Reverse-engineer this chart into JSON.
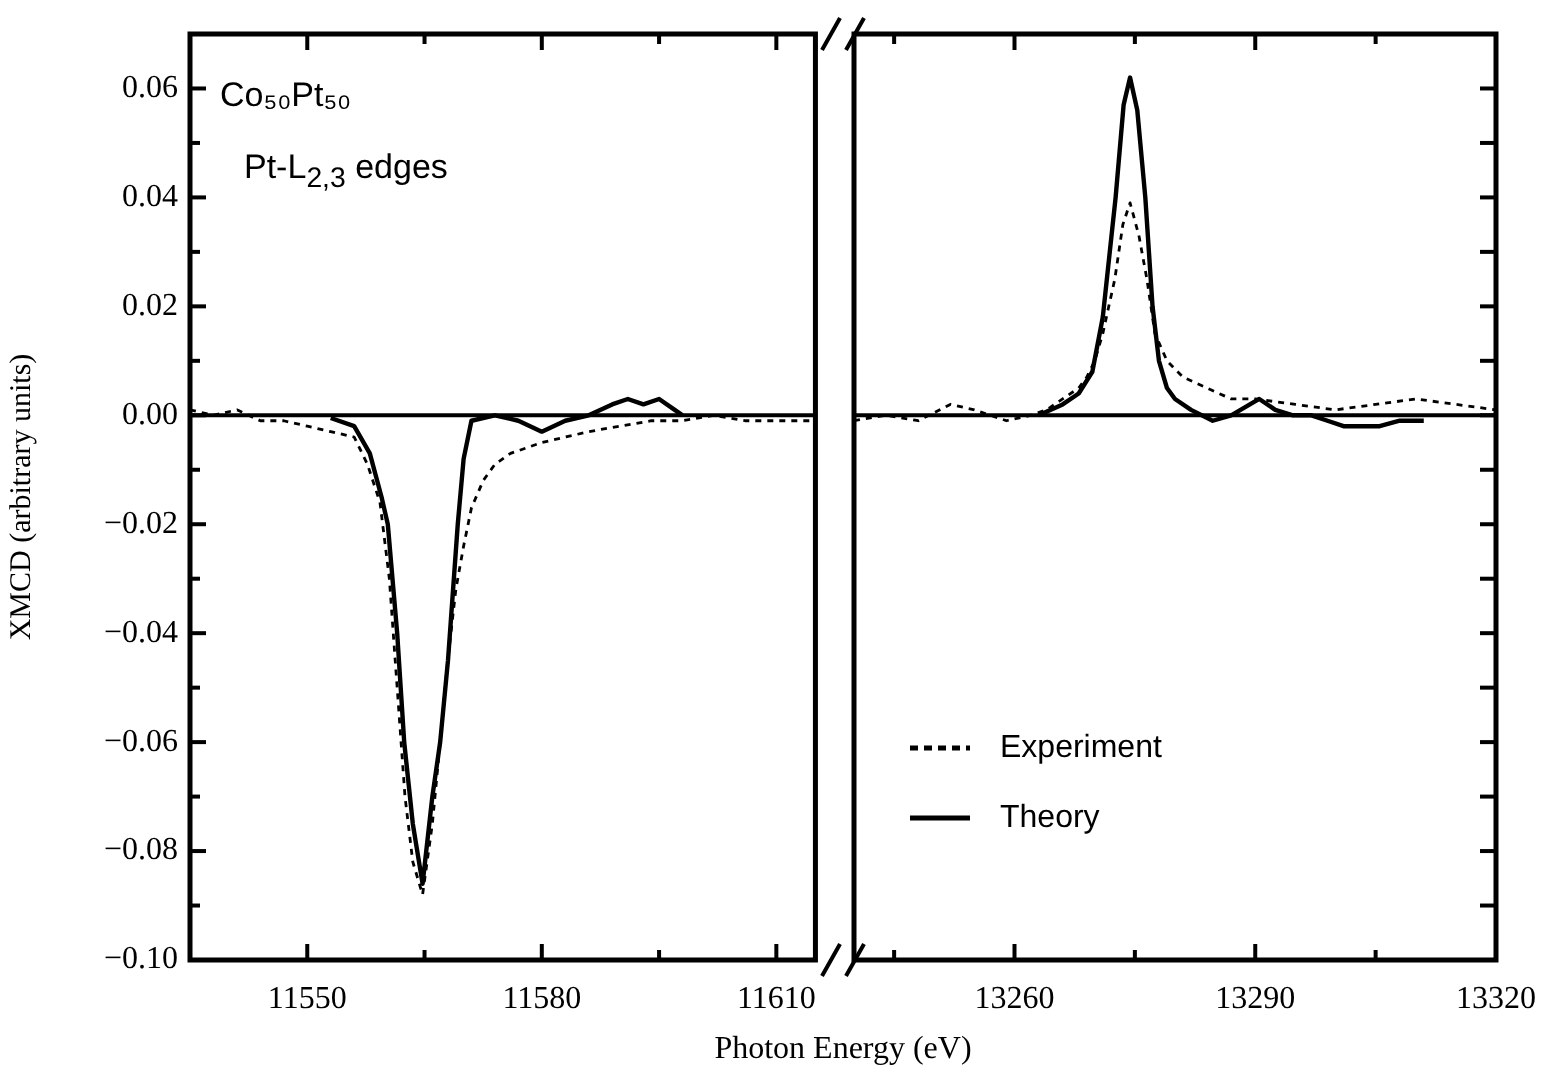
{
  "chart_data": [
    {
      "type": "line",
      "ylabel": "XMCD (arbitrary units)",
      "xlabel": "Photon Energy (eV)",
      "annotations": [
        "Co₅₀Pt₅₀",
        "Pt-L$_{2,3}$ edges"
      ],
      "xlim": [
        11535,
        11615
      ],
      "xticks": [
        11550,
        {
          "value": 11565,
          "label": null
        },
        11580,
        {
          "value": 11595,
          "label": null
        },
        11610
      ],
      "ylim": [
        -0.1,
        0.07
      ],
      "yticks": [
        {
          "value": -0.1,
          "label": "−0.10"
        },
        {
          "value": -0.09,
          "label": null
        },
        {
          "value": -0.08,
          "label": "−0.08"
        },
        {
          "value": -0.07,
          "label": null
        },
        {
          "value": -0.06,
          "label": "−0.06"
        },
        {
          "value": -0.05,
          "label": null
        },
        {
          "value": -0.04,
          "label": "−0.04"
        },
        {
          "value": -0.03,
          "label": null
        },
        {
          "value": -0.02,
          "label": "−0.02"
        },
        {
          "value": -0.01,
          "label": null
        },
        {
          "value": 0,
          "label": "0.00"
        },
        {
          "value": 0.01,
          "label": null
        },
        {
          "value": 0.02,
          "label": "0.02"
        },
        {
          "value": 0.03,
          "label": null
        },
        {
          "value": 0.04,
          "label": "0.04"
        },
        {
          "value": 0.05,
          "label": null
        },
        {
          "value": 0.06,
          "label": "0.06"
        }
      ],
      "ref_lines": [
        {
          "axis": "y",
          "value": 0,
          "color": "#000000"
        }
      ],
      "series": [
        {
          "color": "#000000",
          "line_style": "dashed",
          "x": [
            11535,
            11538,
            11541,
            11544,
            11547,
            11550,
            11553,
            11556,
            11557.7,
            11559.3,
            11560.5,
            11561.5,
            11562.5,
            11563.5,
            11564.75,
            11566,
            11567,
            11567.9,
            11569,
            11570,
            11571,
            11572.5,
            11574,
            11576,
            11578,
            11580,
            11583,
            11586,
            11590,
            11594,
            11598,
            11602,
            11606,
            11610,
            11615
          ],
          "values": [
            0.001,
            0.0,
            0.001,
            -0.001,
            -0.001,
            -0.002,
            -0.003,
            -0.004,
            -0.009,
            -0.016,
            -0.03,
            -0.05,
            -0.07,
            -0.082,
            -0.088,
            -0.075,
            -0.06,
            -0.046,
            -0.032,
            -0.024,
            -0.017,
            -0.012,
            -0.009,
            -0.007,
            -0.006,
            -0.005,
            -0.004,
            -0.003,
            -0.002,
            -0.001,
            -0.001,
            0.0,
            -0.001,
            -0.001,
            -0.001
          ]
        },
        {
          "color": "#000000",
          "line_style": "solid",
          "x": [
            11553,
            11556,
            11558,
            11559.5,
            11560.3,
            11561.5,
            11562.4,
            11563.5,
            11564.75,
            11566,
            11567,
            11568,
            11569.25,
            11570,
            11571,
            11574,
            11577,
            11580,
            11583,
            11586,
            11589,
            11591,
            11593,
            11595,
            11597,
            11598
          ],
          "values": [
            -0.0005,
            -0.002,
            -0.007,
            -0.015,
            -0.02,
            -0.04,
            -0.06,
            -0.075,
            -0.086,
            -0.07,
            -0.06,
            -0.045,
            -0.02,
            -0.008,
            -0.001,
            0.0,
            -0.001,
            -0.003,
            -0.001,
            0.0,
            0.002,
            0.003,
            0.002,
            0.003,
            0.001,
            0.0
          ]
        }
      ]
    },
    {
      "type": "line",
      "tick_labels": "x",
      "legend": "bottom left",
      "xlim": [
        13240,
        13320
      ],
      "xticks": [
        {
          "value": 13245,
          "label": null
        },
        13260,
        {
          "value": 13275,
          "label": null
        },
        13290,
        {
          "value": 13305,
          "label": null
        },
        13320
      ],
      "ylim": [
        -0.1,
        0.07
      ],
      "yticks": [
        -0.1,
        -0.09,
        -0.08,
        -0.07,
        -0.06,
        -0.05,
        -0.04,
        -0.03,
        -0.02,
        -0.01,
        0,
        0.01,
        0.02,
        0.03,
        0.04,
        0.05,
        0.06
      ],
      "ref_lines": [
        {
          "axis": "y",
          "value": 0,
          "color": "#000000"
        }
      ],
      "series": [
        {
          "name": "Experiment",
          "color": "#000000",
          "line_style": "dashed",
          "x": [
            13240,
            13244,
            13248,
            13252,
            13255,
            13259,
            13262,
            13264,
            13266,
            13268,
            13269,
            13270,
            13271,
            13272.5,
            13273.5,
            13274.4,
            13275.5,
            13276.5,
            13277.5,
            13279,
            13281,
            13284,
            13287,
            13290,
            13295,
            13300,
            13305,
            13310,
            13315,
            13320
          ],
          "values": [
            -0.001,
            0.0,
            -0.001,
            0.002,
            0.001,
            -0.001,
            0.0,
            0.001,
            0.003,
            0.005,
            0.007,
            0.01,
            0.015,
            0.025,
            0.035,
            0.039,
            0.033,
            0.025,
            0.015,
            0.01,
            0.007,
            0.005,
            0.003,
            0.003,
            0.002,
            0.001,
            0.002,
            0.003,
            0.002,
            0.001
          ]
        },
        {
          "name": "Theory",
          "color": "#000000",
          "line_style": "solid",
          "x": [
            13263,
            13266,
            13268,
            13269.7,
            13271,
            13272.6,
            13273.6,
            13274.4,
            13275.3,
            13276.3,
            13277.2,
            13278,
            13279,
            13280,
            13282,
            13284.7,
            13287,
            13290.5,
            13292.5,
            13294.7,
            13297,
            13299,
            13301,
            13303,
            13305.5,
            13308,
            13311
          ],
          "values": [
            0.0,
            0.002,
            0.004,
            0.008,
            0.018,
            0.04,
            0.057,
            0.062,
            0.056,
            0.04,
            0.02,
            0.01,
            0.005,
            0.003,
            0.001,
            -0.001,
            0.0,
            0.003,
            0.001,
            0.0,
            0.0,
            -0.001,
            -0.002,
            -0.002,
            -0.002,
            -0.001,
            -0.001
          ]
        }
      ]
    }
  ]
}
